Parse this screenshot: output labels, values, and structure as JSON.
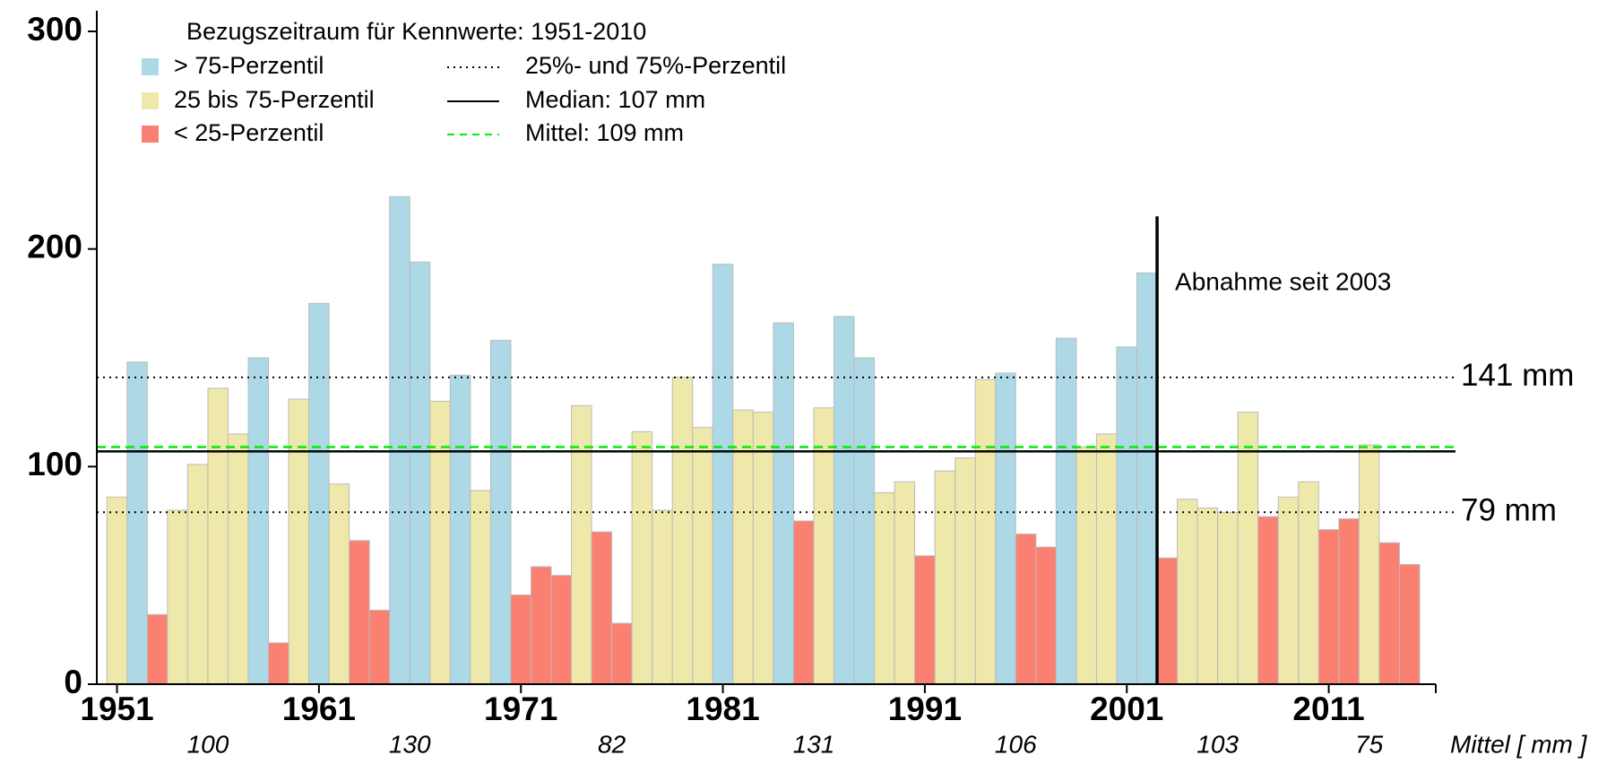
{
  "chart_data": {
    "type": "bar",
    "x": [
      1951,
      1952,
      1953,
      1954,
      1955,
      1956,
      1957,
      1958,
      1959,
      1960,
      1961,
      1962,
      1963,
      1964,
      1965,
      1966,
      1967,
      1968,
      1969,
      1970,
      1971,
      1972,
      1973,
      1974,
      1975,
      1976,
      1977,
      1978,
      1979,
      1980,
      1981,
      1982,
      1983,
      1984,
      1985,
      1986,
      1987,
      1988,
      1989,
      1990,
      1991,
      1992,
      1993,
      1994,
      1995,
      1996,
      1997,
      1998,
      1999,
      2000,
      2001,
      2002,
      2003,
      2004,
      2005,
      2006,
      2007,
      2008,
      2009,
      2010,
      2011,
      2012,
      2013,
      2014,
      2015
    ],
    "values": [
      86,
      148,
      32,
      80,
      101,
      136,
      115,
      150,
      19,
      131,
      175,
      92,
      66,
      34,
      224,
      194,
      130,
      142,
      89,
      158,
      41,
      54,
      50,
      128,
      70,
      28,
      116,
      80,
      141,
      118,
      193,
      126,
      125,
      166,
      75,
      127,
      169,
      150,
      88,
      93,
      59,
      98,
      104,
      140,
      143,
      69,
      63,
      159,
      109,
      115,
      155,
      189,
      58,
      85,
      81,
      79,
      125,
      77,
      86,
      93,
      71,
      76,
      110,
      65,
      55
    ],
    "xlim": [
      1950,
      2016.3
    ],
    "xticks": [
      1951,
      1961,
      1971,
      1981,
      1991,
      2001,
      2011
    ],
    "ylim": [
      0,
      300
    ],
    "yticks": [
      0,
      100,
      200,
      300
    ],
    "legend_title": "Bezugszeitraum für Kennwerte: 1951-2010",
    "classes": [
      {
        "name": "> 75-Perzentil",
        "color": "#add8e6"
      },
      {
        "name": "25 bis 75-Perzentil",
        "color": "#eee8aa"
      },
      {
        "name": "< 25-Perzentil",
        "color": "#fa8072"
      }
    ],
    "percentiles": [
      {
        "value": 141,
        "label": "141 mm"
      },
      {
        "value": 79,
        "label": "79 mm"
      }
    ],
    "percentile_legend": "25%- und 75%-Perzentil",
    "median": 107,
    "median_legend": "Median: 107 mm",
    "mean": 109,
    "mean_legend": "Mittel: 109 mm",
    "mean_color": "#00ee00",
    "annotation": {
      "text": "Abnahme seit 2003",
      "x": 2002.5,
      "color": "#b00000"
    },
    "decade_means": [
      100,
      130,
      82,
      131,
      106,
      103,
      75
    ],
    "decade_means_label": "Mittel [ mm ]"
  }
}
